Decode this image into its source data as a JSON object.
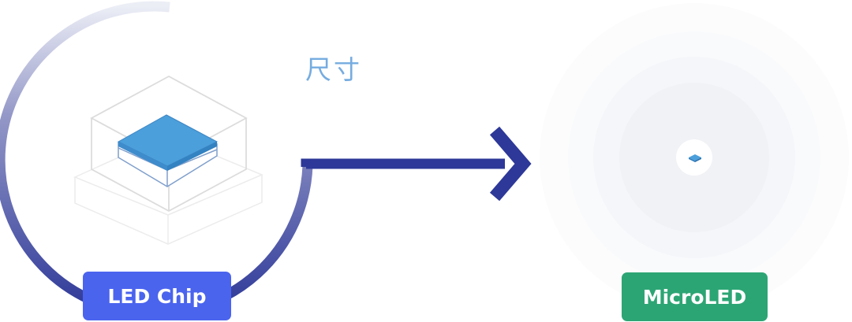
{
  "caption": "尺寸",
  "labels": {
    "led_chip": "LED Chip",
    "microled": "MicroLED"
  },
  "colors": {
    "arc_dark": "#2d3898",
    "arc_light": "#e6e8f4",
    "arrow": "#2d3898",
    "led_chip_badge": "#4a64ee",
    "microled_badge": "#2ca574",
    "chip_top": "#4b9fdb",
    "caption": "#76ace0"
  },
  "icons": {
    "led_chip_graphic": "isometric-chip-icon",
    "microled_graphic": "micro-chip-icon"
  }
}
